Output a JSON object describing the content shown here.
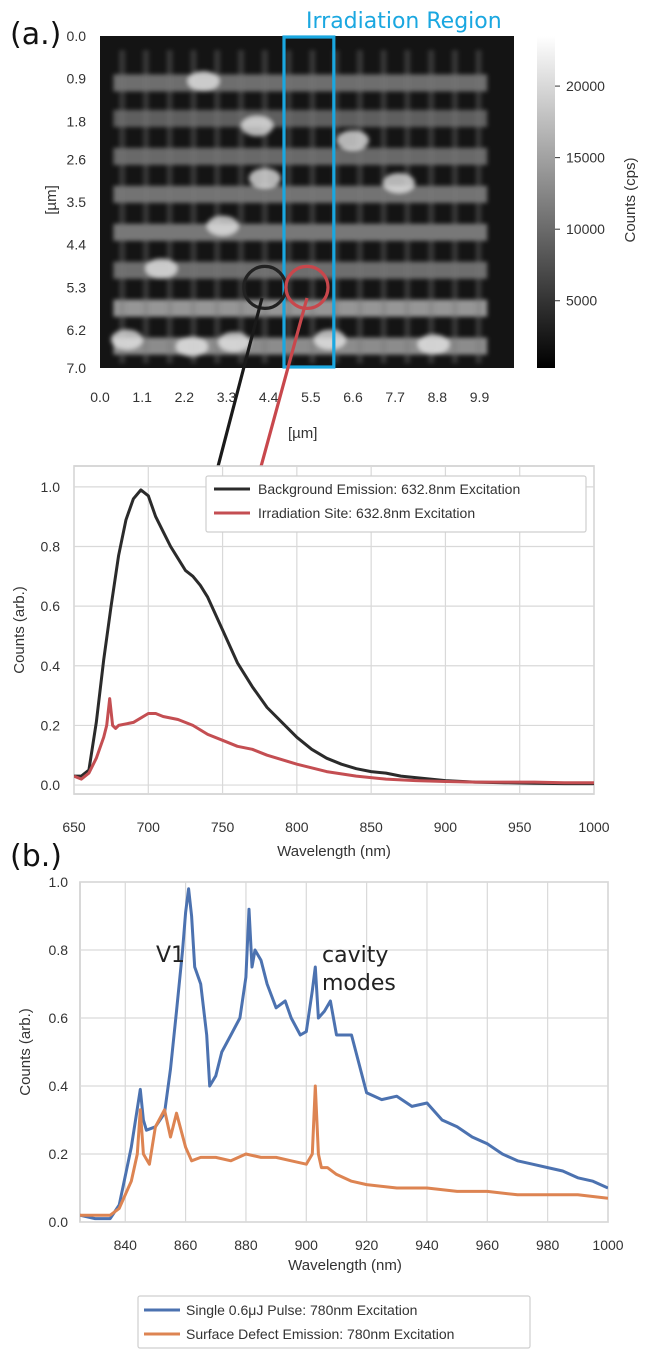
{
  "panel_a_label": "(a.)",
  "panel_b_label": "(b.)",
  "chart_data": [
    {
      "type": "heatmap",
      "xlabel": "[µm]",
      "ylabel": "[µm]",
      "x_ticks": [
        "0.0",
        "1.1",
        "2.2",
        "3.3",
        "4.4",
        "5.5",
        "6.6",
        "7.7",
        "8.8",
        "9.9"
      ],
      "y_ticks": [
        "0.0",
        "0.9",
        "1.8",
        "2.6",
        "3.5",
        "4.4",
        "5.3",
        "6.2",
        "7.0"
      ],
      "xlim": [
        0,
        10.8
      ],
      "ylim": [
        0,
        7.0
      ],
      "colorbar_label": "Counts (cps)",
      "colorbar_ticks": [
        "20000",
        "15000",
        "10000",
        "5000"
      ],
      "colorbar_range": [
        300,
        23500
      ],
      "colormap": "gray",
      "region_label": "Irradiation Region",
      "region_color": "#1aa7e0",
      "region_x_um": [
        4.8,
        6.1
      ],
      "background_circle_color": "#222222",
      "site_circle_color": "#c8474c",
      "background_site_um": [
        4.3,
        5.3
      ],
      "irradiation_site_um": [
        5.4,
        5.3
      ]
    },
    {
      "type": "line",
      "xlabel": "Wavelength (nm)",
      "ylabel": "Counts (arb.)",
      "xlim": [
        650,
        1000
      ],
      "ylim": [
        -0.03,
        1.07
      ],
      "x_ticks": [
        "650",
        "700",
        "750",
        "800",
        "850",
        "900",
        "950",
        "1000"
      ],
      "y_ticks": [
        "0.0",
        "0.2",
        "0.4",
        "0.6",
        "0.8",
        "1.0"
      ],
      "grid": true,
      "legend": "top-right",
      "series": [
        {
          "name": "Background Emission: 632.8nm Excitation",
          "color": "#2b2b2b",
          "x": [
            650,
            655,
            660,
            665,
            670,
            675,
            680,
            685,
            690,
            695,
            700,
            705,
            710,
            715,
            720,
            725,
            730,
            735,
            740,
            750,
            760,
            770,
            780,
            790,
            800,
            810,
            820,
            830,
            840,
            850,
            860,
            870,
            880,
            900,
            920,
            940,
            960,
            980,
            1000
          ],
          "y": [
            0.03,
            0.03,
            0.05,
            0.21,
            0.42,
            0.6,
            0.77,
            0.89,
            0.96,
            0.99,
            0.97,
            0.9,
            0.85,
            0.8,
            0.76,
            0.72,
            0.7,
            0.67,
            0.63,
            0.52,
            0.41,
            0.33,
            0.26,
            0.21,
            0.16,
            0.12,
            0.09,
            0.07,
            0.055,
            0.045,
            0.04,
            0.03,
            0.025,
            0.015,
            0.01,
            0.008,
            0.006,
            0.005,
            0.005
          ]
        },
        {
          "name": "Irradiation Site: 632.8nm Excitation",
          "color": "#c44e52",
          "x": [
            650,
            655,
            660,
            665,
            670,
            672,
            674,
            676,
            678,
            680,
            690,
            700,
            705,
            710,
            720,
            730,
            740,
            750,
            760,
            770,
            780,
            790,
            800,
            820,
            840,
            860,
            880,
            900,
            920,
            940,
            960,
            980,
            1000
          ],
          "y": [
            0.03,
            0.02,
            0.04,
            0.09,
            0.16,
            0.2,
            0.29,
            0.2,
            0.19,
            0.2,
            0.21,
            0.24,
            0.24,
            0.23,
            0.22,
            0.2,
            0.17,
            0.15,
            0.13,
            0.12,
            0.1,
            0.085,
            0.07,
            0.045,
            0.03,
            0.02,
            0.015,
            0.012,
            0.01,
            0.01,
            0.01,
            0.008,
            0.008
          ]
        }
      ]
    },
    {
      "type": "line",
      "xlabel": "Wavelength (nm)",
      "ylabel": "Counts (arb.)",
      "xlim": [
        825,
        1000
      ],
      "ylim": [
        0,
        1.0
      ],
      "x_ticks": [
        "840",
        "860",
        "880",
        "900",
        "920",
        "940",
        "960",
        "980",
        "1000"
      ],
      "y_ticks": [
        "0.0",
        "0.2",
        "0.4",
        "0.6",
        "0.8",
        "1.0"
      ],
      "grid": true,
      "legend": "bottom-center",
      "annotations": [
        "V1",
        "cavity",
        "modes"
      ],
      "series": [
        {
          "name": "Single 0.6μJ Pulse: 780nm Excitation",
          "color": "#4c72b0",
          "x": [
            825,
            830,
            835,
            838,
            842,
            845,
            846,
            847,
            850,
            853,
            855,
            857,
            859,
            860,
            861,
            862,
            863,
            865,
            867,
            868,
            870,
            872,
            875,
            878,
            880,
            881,
            882,
            883,
            885,
            887,
            890,
            893,
            895,
            898,
            900,
            902,
            903,
            904,
            906,
            908,
            910,
            915,
            920,
            925,
            930,
            935,
            940,
            945,
            950,
            955,
            960,
            965,
            970,
            975,
            980,
            985,
            990,
            995,
            1000
          ],
          "y": [
            0.02,
            0.01,
            0.01,
            0.05,
            0.22,
            0.39,
            0.3,
            0.27,
            0.28,
            0.32,
            0.45,
            0.62,
            0.8,
            0.91,
            0.98,
            0.9,
            0.75,
            0.7,
            0.55,
            0.4,
            0.43,
            0.5,
            0.55,
            0.6,
            0.72,
            0.92,
            0.75,
            0.8,
            0.77,
            0.7,
            0.63,
            0.65,
            0.6,
            0.55,
            0.56,
            0.68,
            0.75,
            0.6,
            0.62,
            0.65,
            0.55,
            0.55,
            0.38,
            0.36,
            0.37,
            0.34,
            0.35,
            0.3,
            0.28,
            0.25,
            0.23,
            0.2,
            0.18,
            0.17,
            0.16,
            0.15,
            0.13,
            0.12,
            0.1
          ]
        },
        {
          "name": "Surface Defect Emission: 780nm Excitation",
          "color": "#dd8452",
          "x": [
            825,
            830,
            835,
            838,
            842,
            844,
            845,
            846,
            848,
            850,
            853,
            855,
            857,
            860,
            862,
            865,
            870,
            875,
            880,
            885,
            890,
            895,
            900,
            902,
            903,
            904,
            905,
            907,
            910,
            915,
            920,
            930,
            940,
            950,
            960,
            970,
            980,
            990,
            1000
          ],
          "y": [
            0.02,
            0.02,
            0.02,
            0.04,
            0.12,
            0.2,
            0.33,
            0.2,
            0.17,
            0.28,
            0.33,
            0.25,
            0.32,
            0.22,
            0.18,
            0.19,
            0.19,
            0.18,
            0.2,
            0.19,
            0.19,
            0.18,
            0.17,
            0.2,
            0.4,
            0.2,
            0.16,
            0.16,
            0.14,
            0.12,
            0.11,
            0.1,
            0.1,
            0.09,
            0.09,
            0.08,
            0.08,
            0.08,
            0.07
          ]
        }
      ]
    }
  ]
}
